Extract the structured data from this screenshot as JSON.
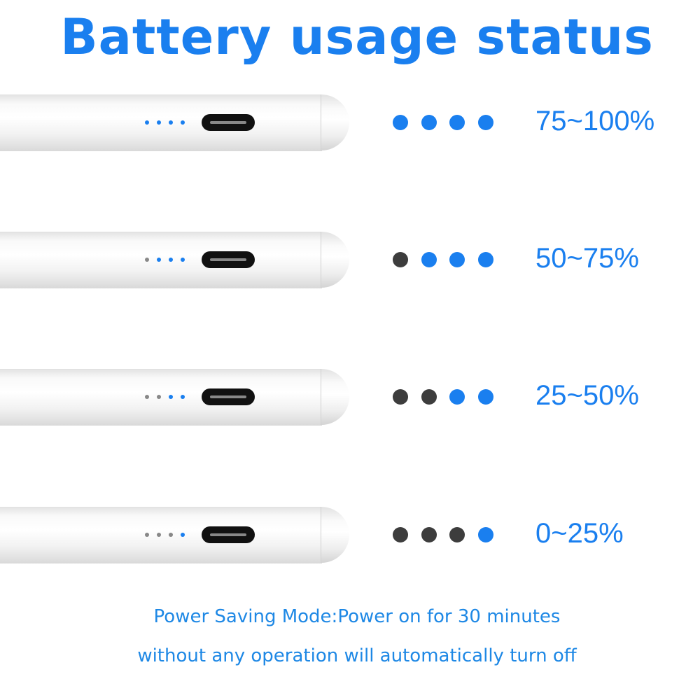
{
  "title": "Battery usage status",
  "colors": {
    "active": "#1a7fef",
    "inactive": "#3d3d3d"
  },
  "rows": [
    {
      "label": "75~100%",
      "active_dots": 4
    },
    {
      "label": "50~75%",
      "active_dots": 3
    },
    {
      "label": "25~50%",
      "active_dots": 2
    },
    {
      "label": "0~25%",
      "active_dots": 1
    }
  ],
  "note": {
    "line1": "Power Saving Mode:Power on for 30 minutes",
    "line2": "without any operation will automatically turn off"
  }
}
